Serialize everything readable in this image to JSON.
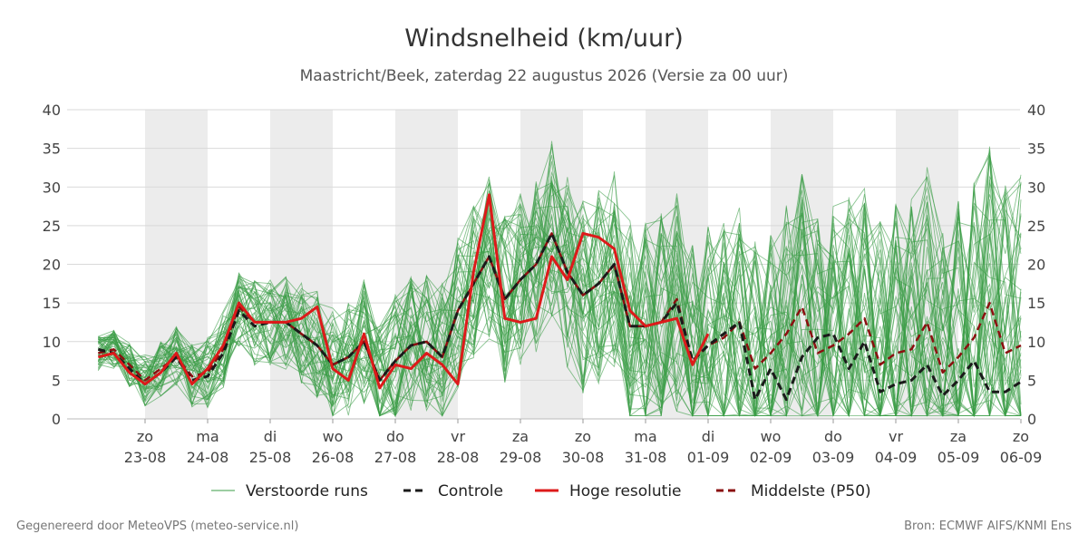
{
  "footer": {
    "left": "Gegenereerd door MeteoVPS (meteo-service.nl)",
    "right": "Bron: ECMWF AIFS/KNMI Ens"
  },
  "chart_data": {
    "type": "line",
    "title": "Windsnelheid (km/uur)",
    "subtitle": "Maastricht/Beek, zaterdag 22 augustus 2026 (Versie za 00 uur)",
    "ylim": [
      0,
      40
    ],
    "yticks": [
      0,
      5,
      10,
      15,
      20,
      25,
      30,
      35,
      40
    ],
    "xlim": [
      -0.75,
      14
    ],
    "grid": true,
    "legend_position": "bottom",
    "day_ticks": [
      {
        "x": 0,
        "day": "zo",
        "date": "23-08"
      },
      {
        "x": 1,
        "day": "ma",
        "date": "24-08"
      },
      {
        "x": 2,
        "day": "di",
        "date": "25-08"
      },
      {
        "x": 3,
        "day": "wo",
        "date": "26-08"
      },
      {
        "x": 4,
        "day": "do",
        "date": "27-08"
      },
      {
        "x": 5,
        "day": "vr",
        "date": "28-08"
      },
      {
        "x": 6,
        "day": "za",
        "date": "29-08"
      },
      {
        "x": 7,
        "day": "zo",
        "date": "30-08"
      },
      {
        "x": 8,
        "day": "ma",
        "date": "31-08"
      },
      {
        "x": 9,
        "day": "di",
        "date": "01-09"
      },
      {
        "x": 10,
        "day": "wo",
        "date": "02-09"
      },
      {
        "x": 11,
        "day": "do",
        "date": "03-09"
      },
      {
        "x": 12,
        "day": "vr",
        "date": "04-09"
      },
      {
        "x": 13,
        "day": "za",
        "date": "05-09"
      },
      {
        "x": 14,
        "day": "zo",
        "date": "06-09"
      }
    ],
    "shaded_days": [
      [
        0,
        1
      ],
      [
        2,
        3
      ],
      [
        4,
        5
      ],
      [
        6,
        7
      ],
      [
        8,
        9
      ],
      [
        10,
        11
      ],
      [
        12,
        13
      ]
    ],
    "legend": [
      {
        "name": "Verstoorde runs",
        "color": "#3a9c46",
        "style": "thin"
      },
      {
        "name": "Controle",
        "color": "#1a1a1a",
        "style": "dashed"
      },
      {
        "name": "Hoge resolutie",
        "color": "#dd1a1a",
        "style": "solid"
      },
      {
        "name": "Middelste (P50)",
        "color": "#8b1010",
        "style": "dashed"
      }
    ],
    "series": [
      {
        "name": "Middelste (P50)",
        "color": "#8b1010",
        "x": [
          -0.75,
          -0.5,
          -0.25,
          0,
          0.25,
          0.5,
          0.75,
          1,
          1.25,
          1.5,
          1.75,
          2,
          2.25,
          2.5,
          2.75,
          3,
          3.25,
          3.5,
          3.75,
          4,
          4.25,
          4.5,
          4.75,
          5,
          5.25,
          5.5,
          5.75,
          6,
          6.25,
          6.5,
          6.75,
          7,
          7.25,
          7.5,
          7.75,
          8,
          8.25,
          8.5,
          8.75,
          9,
          9.25,
          9.5,
          9.75,
          10,
          10.25,
          10.5,
          10.75,
          11,
          11.25,
          11.5,
          11.75,
          12,
          12.25,
          12.5,
          12.75,
          13,
          13.25,
          13.5,
          13.75,
          14
        ],
        "values": [
          8.5,
          9,
          7,
          5,
          6.5,
          8,
          5.5,
          6,
          9,
          14.5,
          12.5,
          12.5,
          12.5,
          11,
          9.5,
          7,
          8,
          10,
          5,
          7.5,
          9.5,
          10,
          8,
          14,
          17.5,
          21,
          15.5,
          18,
          20,
          24,
          19,
          16,
          17.5,
          20,
          12,
          12,
          12.5,
          15.5,
          7.5,
          9.5,
          10.5,
          12.5,
          6.5,
          8.5,
          11,
          14.5,
          8.5,
          9.5,
          11,
          13,
          7,
          8.5,
          9,
          12.5,
          6,
          8,
          10.5,
          15,
          8.5,
          9.5
        ]
      },
      {
        "name": "Controle",
        "color": "#1a1a1a",
        "x": [
          -0.75,
          -0.5,
          -0.25,
          0,
          0.25,
          0.5,
          0.75,
          1,
          1.25,
          1.5,
          1.75,
          2,
          2.25,
          2.5,
          2.75,
          3,
          3.25,
          3.5,
          3.75,
          4,
          4.25,
          4.5,
          4.75,
          5,
          5.25,
          5.5,
          5.75,
          6,
          6.25,
          6.5,
          6.75,
          7,
          7.25,
          7.5,
          7.75,
          8,
          8.25,
          8.5,
          8.75,
          9,
          9.25,
          9.5,
          9.75,
          10,
          10.25,
          10.5,
          10.75,
          11,
          11.25,
          11.5,
          11.75,
          12,
          12.25,
          12.5,
          12.75,
          13,
          13.25,
          13.5,
          13.75,
          14
        ],
        "values": [
          9,
          8.5,
          6.5,
          4.5,
          6,
          8,
          5,
          5.5,
          8.5,
          14,
          12,
          12.5,
          12.5,
          11,
          9.5,
          7,
          8,
          10,
          5,
          7.5,
          9.5,
          10,
          8,
          14,
          17.5,
          21,
          15.5,
          18,
          20,
          24,
          19,
          16,
          17.5,
          20,
          12,
          12,
          12.5,
          15,
          7.5,
          9.5,
          11,
          12.5,
          2.5,
          6.5,
          2.5,
          8,
          10.5,
          11,
          6.5,
          10,
          3.5,
          4.5,
          5,
          7,
          3,
          5,
          7.5,
          3.5,
          3.5,
          4.8
        ]
      },
      {
        "name": "Hoge resolutie",
        "color": "#dd1a1a",
        "x": [
          -0.75,
          -0.5,
          -0.25,
          0,
          0.25,
          0.5,
          0.75,
          1,
          1.25,
          1.5,
          1.75,
          2,
          2.25,
          2.5,
          2.75,
          3,
          3.25,
          3.5,
          3.75,
          4,
          4.25,
          4.5,
          4.75,
          5,
          5.25,
          5.5,
          5.75,
          6,
          6.25,
          6.5,
          6.75,
          7,
          7.25,
          7.5,
          7.75,
          8,
          8.25,
          8.5,
          8.75,
          9
        ],
        "values": [
          8,
          8.5,
          6,
          4.5,
          6,
          8.5,
          4.5,
          6.5,
          9.5,
          15,
          12.5,
          12.5,
          12.5,
          13,
          14.5,
          6.5,
          5,
          11,
          4,
          7,
          6.5,
          8.5,
          7,
          4.5,
          19,
          29,
          13,
          12.5,
          13,
          21,
          18,
          24,
          23.5,
          22,
          14,
          12,
          12.5,
          13,
          7,
          11
        ]
      }
    ]
  }
}
